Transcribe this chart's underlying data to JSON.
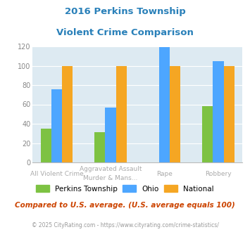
{
  "title_line1": "2016 Perkins Township",
  "title_line2": "Violent Crime Comparison",
  "series_names": [
    "Perkins Township",
    "Ohio",
    "National"
  ],
  "perkins": [
    35,
    31,
    0,
    58
  ],
  "ohio": [
    76,
    57,
    119,
    105
  ],
  "national": [
    100,
    100,
    100,
    100
  ],
  "colors": {
    "Perkins Township": "#7dc242",
    "Ohio": "#4da6ff",
    "National": "#f5a623"
  },
  "ylim": [
    0,
    120
  ],
  "yticks": [
    0,
    20,
    40,
    60,
    80,
    100,
    120
  ],
  "plot_bg": "#ddeaf2",
  "title_color": "#2980b9",
  "cat_top": [
    "",
    "Aggravated Assault",
    "Rape",
    "Robbery"
  ],
  "cat_bot": [
    "All Violent Crime",
    "Murder & Mans...",
    "",
    ""
  ],
  "footer_text": "Compared to U.S. average. (U.S. average equals 100)",
  "copyright_text": "© 2025 CityRating.com - https://www.cityrating.com/crime-statistics/",
  "footer_color": "#cc4400",
  "copyright_color": "#999999"
}
